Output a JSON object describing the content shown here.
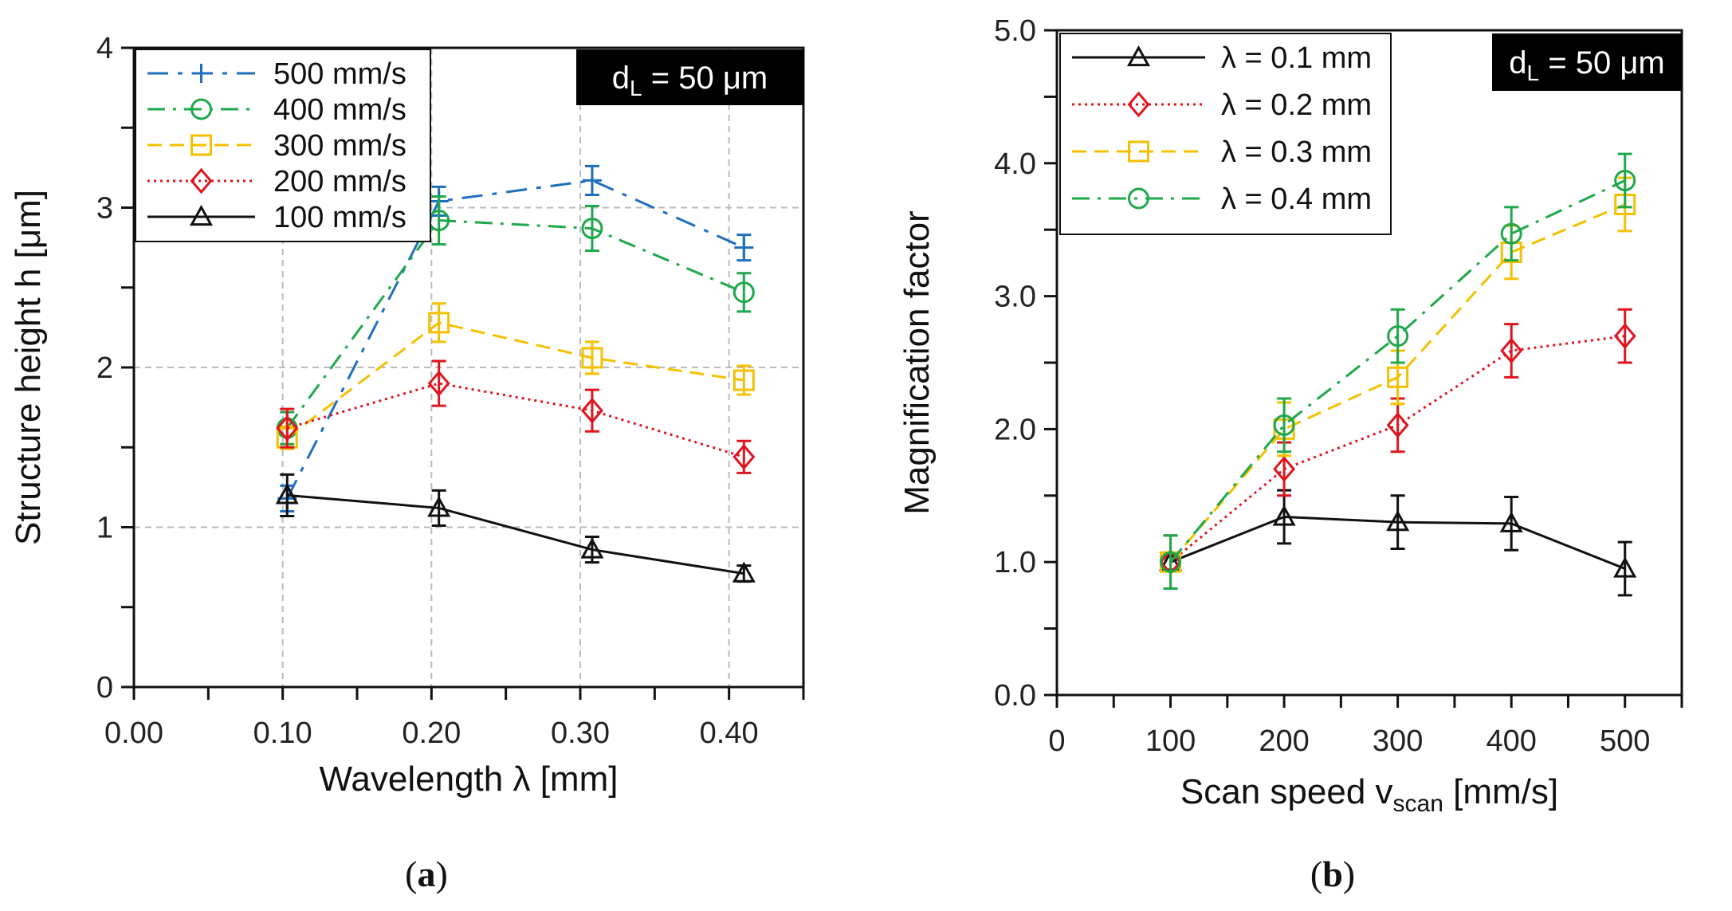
{
  "chart_data": [
    {
      "type": "line",
      "caption_letter": "a",
      "badge": {
        "prefix": "d",
        "sub": "L",
        "suffix": " = 50 μm"
      },
      "xlabel": "Wavelength λ [mm]",
      "ylabel": "Structure height h [μm]",
      "xlim": [
        0.0,
        0.45
      ],
      "ylim": [
        0,
        4
      ],
      "xticks": [
        0.0,
        0.05,
        0.1,
        0.15,
        0.2,
        0.25,
        0.3,
        0.35,
        0.4,
        0.45
      ],
      "xtick_labels": [
        {
          "value": 0.0,
          "label": "0.00"
        },
        {
          "value": 0.1,
          "label": "0.10"
        },
        {
          "value": 0.2,
          "label": "0.20"
        },
        {
          "value": 0.3,
          "label": "0.30"
        },
        {
          "value": 0.4,
          "label": "0.40"
        }
      ],
      "yticks": [
        0,
        0.5,
        1,
        1.5,
        2,
        2.5,
        3,
        3.5,
        4
      ],
      "ytick_labels": [
        {
          "value": 0,
          "label": "0"
        },
        {
          "value": 1,
          "label": "1"
        },
        {
          "value": 2,
          "label": "2"
        },
        {
          "value": 3,
          "label": "3"
        },
        {
          "value": 4,
          "label": "4"
        }
      ],
      "grid_x": [
        0.1,
        0.2,
        0.3,
        0.4
      ],
      "grid_y": [
        1,
        2,
        3
      ],
      "x": [
        0.103,
        0.205,
        0.308,
        0.41
      ],
      "series": [
        {
          "name": "500 mm/s",
          "color": "#1f6fbf",
          "dash": "26,12,6,12",
          "marker": "plus",
          "values": [
            1.18,
            3.04,
            3.17,
            2.75
          ],
          "errors": [
            0.08,
            0.09,
            0.09,
            0.08
          ]
        },
        {
          "name": "400 mm/s",
          "color": "#1ea84a",
          "dash": "22,10,4,10",
          "marker": "circle",
          "values": [
            1.62,
            2.92,
            2.87,
            2.47
          ],
          "errors": [
            0.1,
            0.15,
            0.14,
            0.12
          ]
        },
        {
          "name": "300 mm/s",
          "color": "#f5c000",
          "dash": "18,10",
          "marker": "square",
          "values": [
            1.56,
            2.28,
            2.06,
            1.92
          ],
          "errors": [
            0.07,
            0.12,
            0.1,
            0.09
          ]
        },
        {
          "name": "200 mm/s",
          "color": "#e0141e",
          "dash": "3,5",
          "marker": "diamond",
          "values": [
            1.62,
            1.9,
            1.73,
            1.44
          ],
          "errors": [
            0.12,
            0.14,
            0.13,
            0.1
          ]
        },
        {
          "name": "100 mm/s",
          "color": "#111111",
          "dash": "",
          "marker": "triangle",
          "values": [
            1.2,
            1.12,
            0.86,
            0.71
          ],
          "errors": [
            0.13,
            0.11,
            0.08,
            0.05
          ]
        }
      ]
    },
    {
      "type": "line",
      "caption_letter": "b",
      "badge": {
        "prefix": "d",
        "sub": "L",
        "suffix": " = 50 μm"
      },
      "xlabel": {
        "prefix": "Scan speed v",
        "sub": "scan",
        "suffix": " [mm/s]"
      },
      "ylabel": "Magnification factor",
      "xlim": [
        0,
        550
      ],
      "ylim": [
        0,
        5
      ],
      "xticks": [
        0,
        50,
        100,
        150,
        200,
        250,
        300,
        350,
        400,
        450,
        500,
        550
      ],
      "xtick_labels": [
        {
          "value": 0,
          "label": "0"
        },
        {
          "value": 100,
          "label": "100"
        },
        {
          "value": 200,
          "label": "200"
        },
        {
          "value": 300,
          "label": "300"
        },
        {
          "value": 400,
          "label": "400"
        },
        {
          "value": 500,
          "label": "500"
        }
      ],
      "yticks": [
        0,
        0.5,
        1,
        1.5,
        2,
        2.5,
        3,
        3.5,
        4,
        4.5,
        5
      ],
      "ytick_labels": [
        {
          "value": 0,
          "label": "0.0"
        },
        {
          "value": 1,
          "label": "1.0"
        },
        {
          "value": 2,
          "label": "2.0"
        },
        {
          "value": 3,
          "label": "3.0"
        },
        {
          "value": 4,
          "label": "4.0"
        },
        {
          "value": 5,
          "label": "5.0"
        }
      ],
      "grid_x": [],
      "grid_y": [],
      "x": [
        100,
        200,
        300,
        400,
        500
      ],
      "series": [
        {
          "name": "λ = 0.1 mm",
          "color": "#111111",
          "dash": "",
          "marker": "triangle",
          "values": [
            1.0,
            1.34,
            1.3,
            1.29,
            0.95
          ],
          "errors": [
            0.2,
            0.2,
            0.2,
            0.2,
            0.2
          ]
        },
        {
          "name": "λ = 0.2 mm",
          "color": "#e0141e",
          "dash": "3,5",
          "marker": "diamond",
          "values": [
            1.0,
            1.7,
            2.03,
            2.59,
            2.7
          ],
          "errors": [
            0.2,
            0.2,
            0.2,
            0.2,
            0.2
          ]
        },
        {
          "name": "λ = 0.3 mm",
          "color": "#f5c000",
          "dash": "18,10",
          "marker": "square",
          "values": [
            1.0,
            2.0,
            2.39,
            3.33,
            3.69
          ],
          "errors": [
            0.2,
            0.2,
            0.2,
            0.2,
            0.2
          ]
        },
        {
          "name": "λ = 0.4 mm",
          "color": "#1ea84a",
          "dash": "22,10,4,10",
          "marker": "circle",
          "values": [
            1.0,
            2.03,
            2.7,
            3.47,
            3.87
          ],
          "errors": [
            0.2,
            0.2,
            0.2,
            0.2,
            0.2
          ]
        }
      ]
    }
  ]
}
